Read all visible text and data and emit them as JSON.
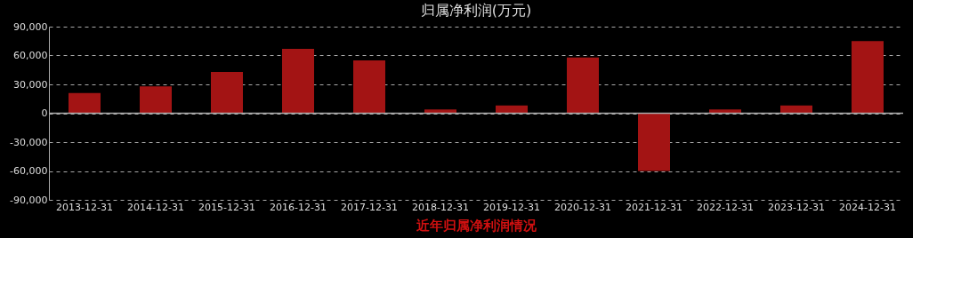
{
  "chart_data": {
    "type": "bar",
    "title": "归属净利润(万元)",
    "annotations": [
      "近年归属净利润情况"
    ],
    "categories": [
      "2013-12-31",
      "2014-12-31",
      "2015-12-31",
      "2016-12-31",
      "2017-12-31",
      "2018-12-31",
      "2019-12-31",
      "2020-12-31",
      "2021-12-31",
      "2022-12-31",
      "2023-12-31",
      "2024-12-31"
    ],
    "values": [
      21000,
      28000,
      43000,
      67000,
      55000,
      4000,
      8000,
      58000,
      -60000,
      4000,
      8000,
      75000
    ],
    "color": "#a31414",
    "ylim": [
      -90000,
      90000
    ],
    "yticks": [
      {
        "value": -90000,
        "label": "-90,000"
      },
      {
        "value": -60000,
        "label": "-60,000"
      },
      {
        "value": -30000,
        "label": "-30,000"
      },
      0,
      {
        "value": 30000,
        "label": "30,000"
      },
      {
        "value": 60000,
        "label": "60,000"
      },
      {
        "value": 90000,
        "label": "90,000"
      }
    ],
    "grid": "y"
  }
}
